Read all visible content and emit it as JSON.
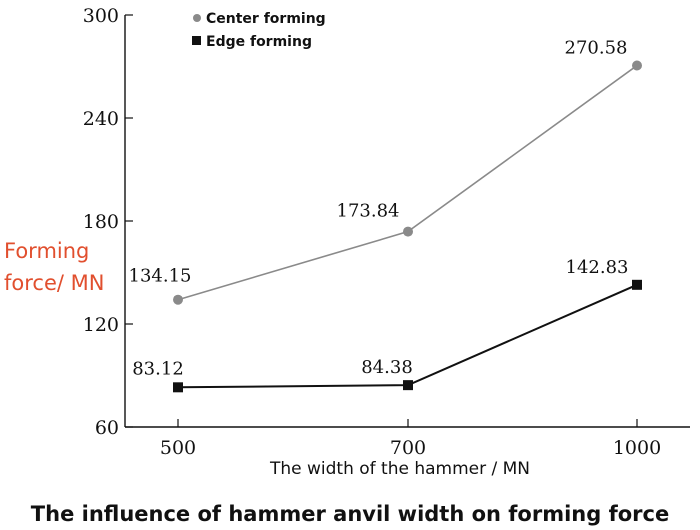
{
  "chart_data": {
    "type": "line",
    "title": "The influence of hammer anvil width on forming force",
    "xlabel": "The width of the hammer / MN",
    "ylabel": [
      "Forming",
      "force/ MN"
    ],
    "categories": [
      "500",
      "700",
      "1000"
    ],
    "yticks": [
      60,
      120,
      180,
      240,
      300
    ],
    "ylim": [
      60,
      300
    ],
    "grid": false,
    "legend_position": "top-left",
    "series": [
      {
        "name": "Center forming",
        "marker": "circle",
        "color": "#8a8a8a",
        "values": [
          134.15,
          173.84,
          270.58
        ],
        "labels": [
          "134.15",
          "173.84",
          "270.58"
        ]
      },
      {
        "name": "Edge forming",
        "marker": "square",
        "color": "#111111",
        "values": [
          83.12,
          84.38,
          142.83
        ],
        "labels": [
          "83.12",
          "84.38",
          "142.83"
        ]
      }
    ]
  }
}
